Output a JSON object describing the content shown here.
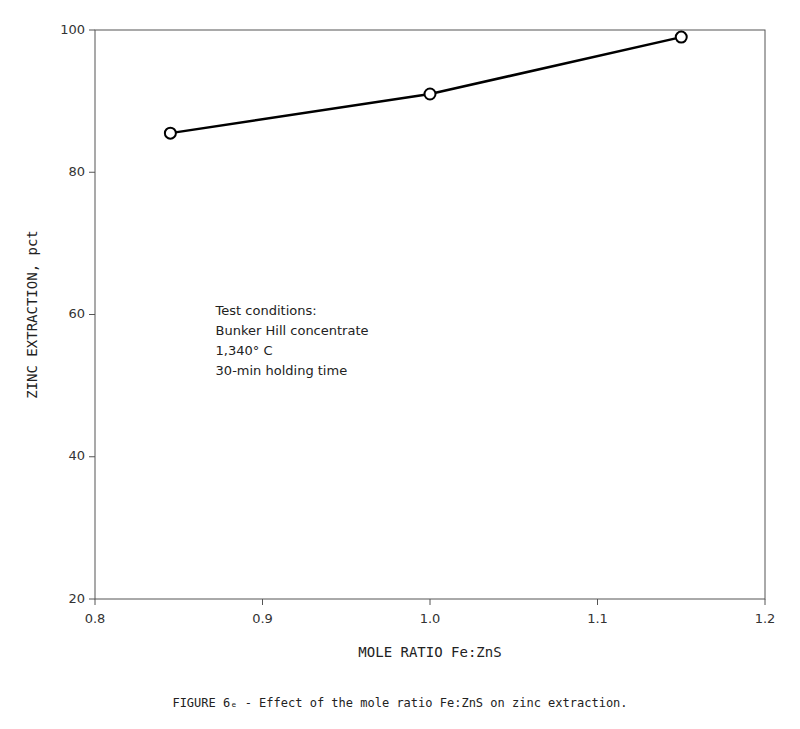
{
  "chart_data": {
    "type": "line",
    "x": [
      0.845,
      1.0,
      1.15
    ],
    "values": [
      85.5,
      91.0,
      99.0
    ],
    "xlim": [
      0.8,
      1.2
    ],
    "ylim": [
      20,
      100
    ],
    "xticks": [
      0.8,
      0.9,
      {
        "value": 1.0,
        "label": "1.0"
      },
      1.1,
      1.2
    ],
    "yticks": [
      20,
      40,
      60,
      80,
      100
    ],
    "xlabel": "MOLE RATIO Fe:ZnS",
    "ylabel": "ZINC EXTRACTION,  pct",
    "annotations": [
      "Test conditions:",
      "Bunker Hill concentrate",
      "1,340° C",
      "30-min holding time"
    ],
    "caption": "FIGURE 6ₑ - Effect of the mole ratio Fe:ZnS on zinc extraction.",
    "color": "#000000",
    "marker": "circle",
    "grid": false
  }
}
